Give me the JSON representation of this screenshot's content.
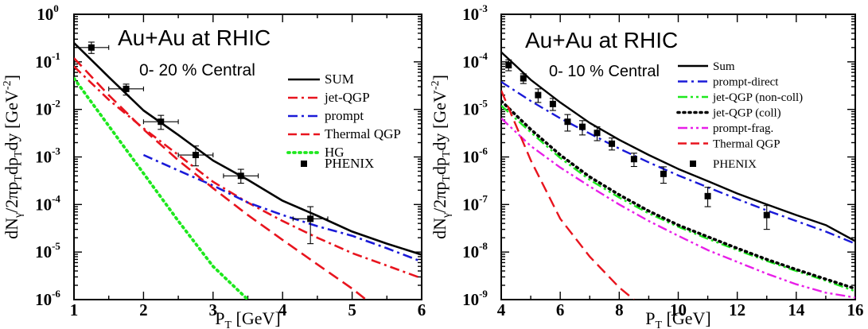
{
  "chart_data": [
    {
      "type": "line",
      "title": "Au+Au at RHIC",
      "subtitle": "0- 20 % Central",
      "xlabel": "P_T [GeV]",
      "ylabel": "dN_γ/2πp_Tdp_Tdy [GeV^-2]",
      "xlim": [
        1,
        6
      ],
      "ylim": [
        1e-06,
        1
      ],
      "yscale": "log",
      "x_ticks": [
        1,
        2,
        3,
        4,
        5,
        6
      ],
      "y_ticks": [
        {
          "value": 1e-06,
          "base": "10",
          "exp": "-6"
        },
        {
          "value": 1e-05,
          "base": "10",
          "exp": "-5"
        },
        {
          "value": 0.0001,
          "base": "10",
          "exp": "-4"
        },
        {
          "value": 0.001,
          "base": "10",
          "exp": "-3"
        },
        {
          "value": 0.01,
          "base": "10",
          "exp": "-2"
        },
        {
          "value": 0.1,
          "base": "10",
          "exp": "-1"
        },
        {
          "value": 1,
          "base": "10",
          "exp": "0"
        }
      ],
      "legend_position": "right",
      "series": [
        {
          "name": "SUM",
          "color": "#000000",
          "dash": "solid",
          "x": [
            1,
            1.5,
            2,
            2.5,
            3,
            3.5,
            4,
            4.5,
            5,
            5.5,
            6
          ],
          "y": [
            0.25,
            0.048,
            0.0095,
            0.0029,
            0.00084,
            0.00033,
            0.00012,
            5.8e-05,
            2.7e-05,
            1.5e-05,
            8.8e-06
          ]
        },
        {
          "name": "jet-QGP",
          "color": "#e8141e",
          "dash": "dashdot",
          "x": [
            1,
            1.5,
            2,
            2.5,
            3,
            3.5,
            4,
            4.5,
            5,
            5.5,
            6
          ],
          "y": [
            0.08,
            0.016,
            0.004,
            0.0011,
            0.0003,
            0.00011,
            4.5e-05,
            2e-05,
            9.5e-06,
            5.2e-06,
            2.8e-06
          ]
        },
        {
          "name": "prompt",
          "color": "#1a1ad8",
          "dash": "dashdot",
          "x": [
            2,
            2.5,
            3,
            3.5,
            4,
            4.5,
            5,
            5.5,
            6
          ],
          "y": [
            0.0011,
            0.00052,
            0.00025,
            0.00011,
            6e-05,
            3.5e-05,
            2.2e-05,
            1.2e-05,
            6.3e-06
          ]
        },
        {
          "name": "Thermal QGP",
          "color": "#e8141e",
          "dash": "dashed",
          "x": [
            1,
            1.5,
            2,
            2.5,
            3,
            3.5,
            4,
            4.5,
            5,
            5.2
          ],
          "y": [
            0.12,
            0.02,
            0.0038,
            0.00085,
            0.00022,
            6e-05,
            1.8e-05,
            5.5e-06,
            1.7e-06,
            1e-06
          ]
        },
        {
          "name": "HG",
          "color": "#1ee81e",
          "dash": "dotted",
          "x": [
            1,
            1.5,
            2,
            2.5,
            3,
            3.5
          ],
          "y": [
            0.045,
            0.0045,
            0.00045,
            4.5e-05,
            5e-06,
            1e-06
          ]
        }
      ],
      "data_series": {
        "name": "PHENIX",
        "x": [
          1.25,
          1.75,
          2.25,
          2.75,
          3.4,
          4.4
        ],
        "y": [
          0.2,
          0.027,
          0.0055,
          0.0011,
          0.0004,
          5e-05
        ],
        "x_err": [
          0.25,
          0.25,
          0.25,
          0.25,
          0.25,
          0.25
        ],
        "y_low": [
          0.15,
          0.02,
          0.0038,
          0.00065,
          0.00028,
          1.5e-05
        ],
        "y_high": [
          0.26,
          0.034,
          0.0075,
          0.0017,
          0.00055,
          9e-05
        ]
      }
    },
    {
      "type": "line",
      "title": "Au+Au at RHIC",
      "subtitle": "0- 10 % Central",
      "xlabel": "P_T [GeV]",
      "ylabel": "dN_γ/2πp_Tdp_Tdy [GeV^-2]",
      "xlim": [
        4,
        16
      ],
      "ylim": [
        1e-09,
        0.001
      ],
      "yscale": "log",
      "x_ticks": [
        4,
        6,
        8,
        10,
        12,
        14,
        16
      ],
      "y_ticks": [
        {
          "value": 1e-09,
          "base": "10",
          "exp": "-9"
        },
        {
          "value": 1e-08,
          "base": "10",
          "exp": "-8"
        },
        {
          "value": 1e-07,
          "base": "10",
          "exp": "-7"
        },
        {
          "value": 1e-06,
          "base": "10",
          "exp": "-6"
        },
        {
          "value": 1e-05,
          "base": "10",
          "exp": "-5"
        },
        {
          "value": 0.0001,
          "base": "10",
          "exp": "-4"
        },
        {
          "value": 0.001,
          "base": "10",
          "exp": "-3"
        }
      ],
      "legend_position": "right",
      "series": [
        {
          "name": "Sum",
          "color": "#000000",
          "dash": "solid",
          "x": [
            4,
            5,
            6,
            7,
            8,
            9,
            10,
            11,
            12,
            13,
            14,
            15,
            16
          ],
          "y": [
            0.00016,
            4.2e-05,
            1.4e-05,
            5.2e-06,
            2.3e-06,
            1.1e-06,
            5.6e-07,
            3.1e-07,
            1.7e-07,
            1e-07,
            6e-08,
            3.7e-08,
            1.7e-08
          ]
        },
        {
          "name": "prompt-direct",
          "color": "#1a1ad8",
          "dash": "dashdot",
          "x": [
            4,
            5,
            6,
            7,
            8,
            9,
            10,
            11,
            12,
            13,
            14,
            15,
            16
          ],
          "y": [
            3.8e-05,
            1.5e-05,
            6.5e-06,
            3.1e-06,
            1.5e-06,
            7.7e-07,
            4.1e-07,
            2.3e-07,
            1.3e-07,
            7.5e-08,
            4.5e-08,
            2.7e-08,
            1.5e-08
          ]
        },
        {
          "name": "jet-QGP (non-coll)",
          "color": "#1ee81e",
          "dash": "dashdotdot",
          "x": [
            4,
            5,
            6,
            7,
            8,
            9,
            10,
            11,
            12,
            13,
            14,
            15,
            16
          ],
          "y": [
            1.2e-05,
            3.3e-06,
            9.5e-07,
            3.3e-07,
            1.4e-07,
            6.5e-08,
            3.4e-08,
            1.9e-08,
            1.1e-08,
            6.5e-09,
            4e-09,
            2.5e-09,
            1.5e-09
          ]
        },
        {
          "name": "jet-QGP (coll)",
          "color": "#000000",
          "dash": "dotted",
          "x": [
            4,
            5,
            6,
            7,
            8,
            9,
            10,
            11,
            12,
            13,
            14,
            15,
            16
          ],
          "y": [
            1.5e-05,
            3.8e-06,
            1.1e-06,
            3.8e-07,
            1.6e-07,
            7.3e-08,
            3.7e-08,
            2.1e-08,
            1.2e-08,
            7e-09,
            4.3e-09,
            2.7e-09,
            1.7e-09
          ]
        },
        {
          "name": "prompt-frag.",
          "color": "#e81ee8",
          "dash": "dashdotdot",
          "x": [
            4,
            5,
            6,
            7,
            8,
            9,
            10,
            11,
            12,
            13,
            14,
            15,
            16
          ],
          "y": [
            6.5e-06,
            1.7e-06,
            6e-07,
            2.4e-07,
            1e-07,
            4.5e-08,
            2.2e-08,
            1.1e-08,
            6.2e-09,
            3.5e-09,
            2.1e-09,
            1.4e-09,
            1.1e-09
          ]
        },
        {
          "name": "Thermal QGP",
          "color": "#e8141e",
          "dash": "dashed",
          "x": [
            4,
            5,
            6,
            7,
            8,
            8.5
          ],
          "y": [
            2.5e-05,
            8.5e-07,
            5e-08,
            8e-09,
            1.8e-09,
            1e-09
          ]
        }
      ],
      "data_series": {
        "name": "PHENIX",
        "x": [
          4.25,
          4.75,
          5.25,
          5.75,
          6.25,
          6.75,
          7.25,
          7.75,
          8.5,
          9.5,
          11,
          13
        ],
        "y": [
          8.5e-05,
          4.5e-05,
          2e-05,
          1.3e-05,
          5.5e-06,
          4.3e-06,
          3.2e-06,
          1.9e-06,
          9e-07,
          4.4e-07,
          1.5e-07,
          6e-08
        ],
        "y_low": [
          6.5e-05,
          3.5e-05,
          1.4e-05,
          9.5e-06,
          3.5e-06,
          2.9e-06,
          2.2e-06,
          1.4e-06,
          6.3e-07,
          2.8e-07,
          9e-08,
          3e-08
        ],
        "y_high": [
          0.00011,
          5.6e-05,
          2.7e-05,
          1.7e-05,
          7.8e-06,
          5.8e-06,
          4.3e-06,
          2.5e-06,
          1.2e-06,
          6.2e-07,
          2.3e-07,
          9.5e-08
        ]
      }
    }
  ]
}
